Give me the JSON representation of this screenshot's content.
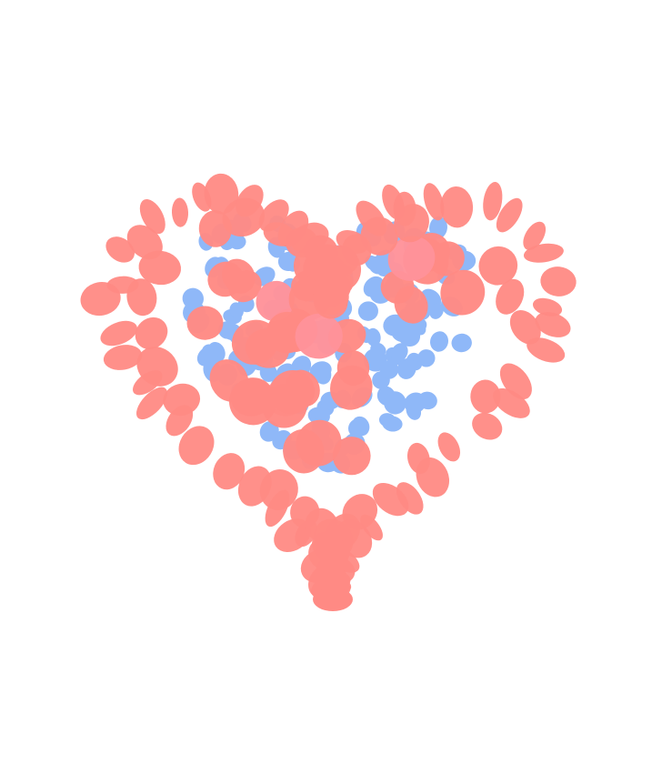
{
  "scene": {
    "subject": "heart-of-discs",
    "background_color": "#ffffff",
    "colors": {
      "outer_disc": "#ff8a84",
      "outer_disc_highlight": "#ff939a",
      "inner_disc": "#8fb8f8"
    }
  }
}
